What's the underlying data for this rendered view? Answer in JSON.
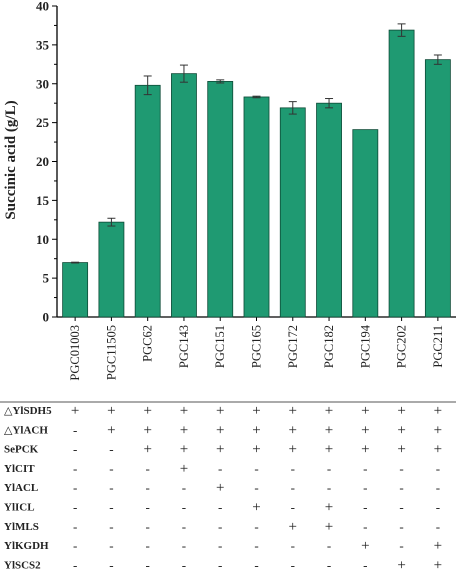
{
  "chart_data": {
    "type": "bar",
    "title": "",
    "xlabel": "",
    "ylabel": "Succinic acid (g/L)",
    "ylim": [
      0,
      40
    ],
    "yticks": [
      0,
      5,
      10,
      15,
      20,
      25,
      30,
      35,
      40
    ],
    "bar_color": "#1f9a72",
    "categories": [
      "PGC01003",
      "PGC11505",
      "PGC62",
      "PGC143",
      "PGC151",
      "PGC165",
      "PGC172",
      "PGC182",
      "PGC194",
      "PGC202",
      "PGC211"
    ],
    "values": [
      7.0,
      12.2,
      29.8,
      31.3,
      30.3,
      28.3,
      26.9,
      27.5,
      24.1,
      36.9,
      33.1
    ],
    "errors": [
      0.05,
      0.5,
      1.2,
      1.1,
      0.2,
      0.1,
      0.8,
      0.6,
      0.0,
      0.8,
      0.6
    ]
  },
  "genotype_table": {
    "rows": [
      {
        "label": "△YlSDH5",
        "marks": [
          "+",
          "+",
          "+",
          "+",
          "+",
          "+",
          "+",
          "+",
          "+",
          "+",
          "+"
        ]
      },
      {
        "label": "△YlACH",
        "marks": [
          "-",
          "+",
          "+",
          "+",
          "+",
          "+",
          "+",
          "+",
          "+",
          "+",
          "+"
        ]
      },
      {
        "label": "SePCK",
        "marks": [
          "-",
          "-",
          "+",
          "+",
          "+",
          "+",
          "+",
          "+",
          "+",
          "+",
          "+"
        ]
      },
      {
        "label": "YlCIT",
        "marks": [
          "-",
          "-",
          "-",
          "+",
          "-",
          "-",
          "-",
          "-",
          "-",
          "-",
          "-"
        ]
      },
      {
        "label": "YlACL",
        "marks": [
          "-",
          "-",
          "-",
          "-",
          "+",
          "-",
          "-",
          "-",
          "-",
          "-",
          "-"
        ]
      },
      {
        "label": "YlICL",
        "marks": [
          "-",
          "-",
          "-",
          "-",
          "-",
          "+",
          "-",
          "+",
          "-",
          "-",
          "-"
        ]
      },
      {
        "label": "YlMLS",
        "marks": [
          "-",
          "-",
          "-",
          "-",
          "-",
          "-",
          "+",
          "+",
          "-",
          "-",
          "-"
        ]
      },
      {
        "label": "YlKGDH",
        "marks": [
          "-",
          "-",
          "-",
          "-",
          "-",
          "-",
          "-",
          "-",
          "+",
          "-",
          "+"
        ]
      },
      {
        "label": "YlSCS2",
        "marks": [
          "-",
          "-",
          "-",
          "-",
          "-",
          "-",
          "-",
          "-",
          "-",
          "+",
          "+"
        ]
      }
    ]
  }
}
